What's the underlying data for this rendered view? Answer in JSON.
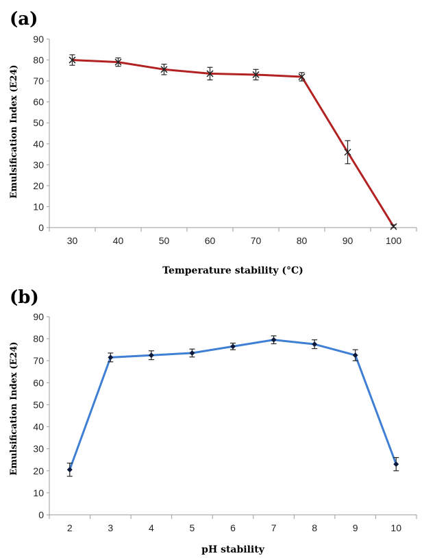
{
  "chart_data": [
    {
      "panel": "(a)",
      "type": "line",
      "xlabel": "Temperature stability (°C)",
      "ylabel": "Emulsification Index (E24)",
      "x": [
        30,
        40,
        50,
        60,
        70,
        80,
        90,
        100
      ],
      "y": [
        80,
        79,
        75.5,
        73.5,
        73,
        72,
        36,
        0.5
      ],
      "err": [
        2.5,
        2,
        2.5,
        3,
        2.5,
        2,
        5.5,
        0.8
      ],
      "yticks": [
        0,
        10,
        20,
        30,
        40,
        50,
        60,
        70,
        80,
        90
      ],
      "ylim": [
        0,
        90
      ],
      "line_color": "#b22222",
      "marker": "x",
      "grid": false
    },
    {
      "panel": "(b)",
      "type": "line",
      "xlabel": "pH stability",
      "ylabel": "Emulsification Index (E24)",
      "x": [
        2,
        3,
        4,
        5,
        6,
        7,
        8,
        9,
        10
      ],
      "y": [
        20.5,
        71.5,
        72.5,
        73.5,
        76.5,
        79.5,
        77.5,
        72.5,
        23
      ],
      "err": [
        3,
        2,
        2,
        1.8,
        1.5,
        1.8,
        2,
        2.5,
        3
      ],
      "yticks": [
        0,
        10,
        20,
        30,
        40,
        50,
        60,
        70,
        80,
        90
      ],
      "ylim": [
        0,
        90
      ],
      "line_color": "#3f7fd4",
      "marker": "diamond",
      "grid": false
    }
  ]
}
